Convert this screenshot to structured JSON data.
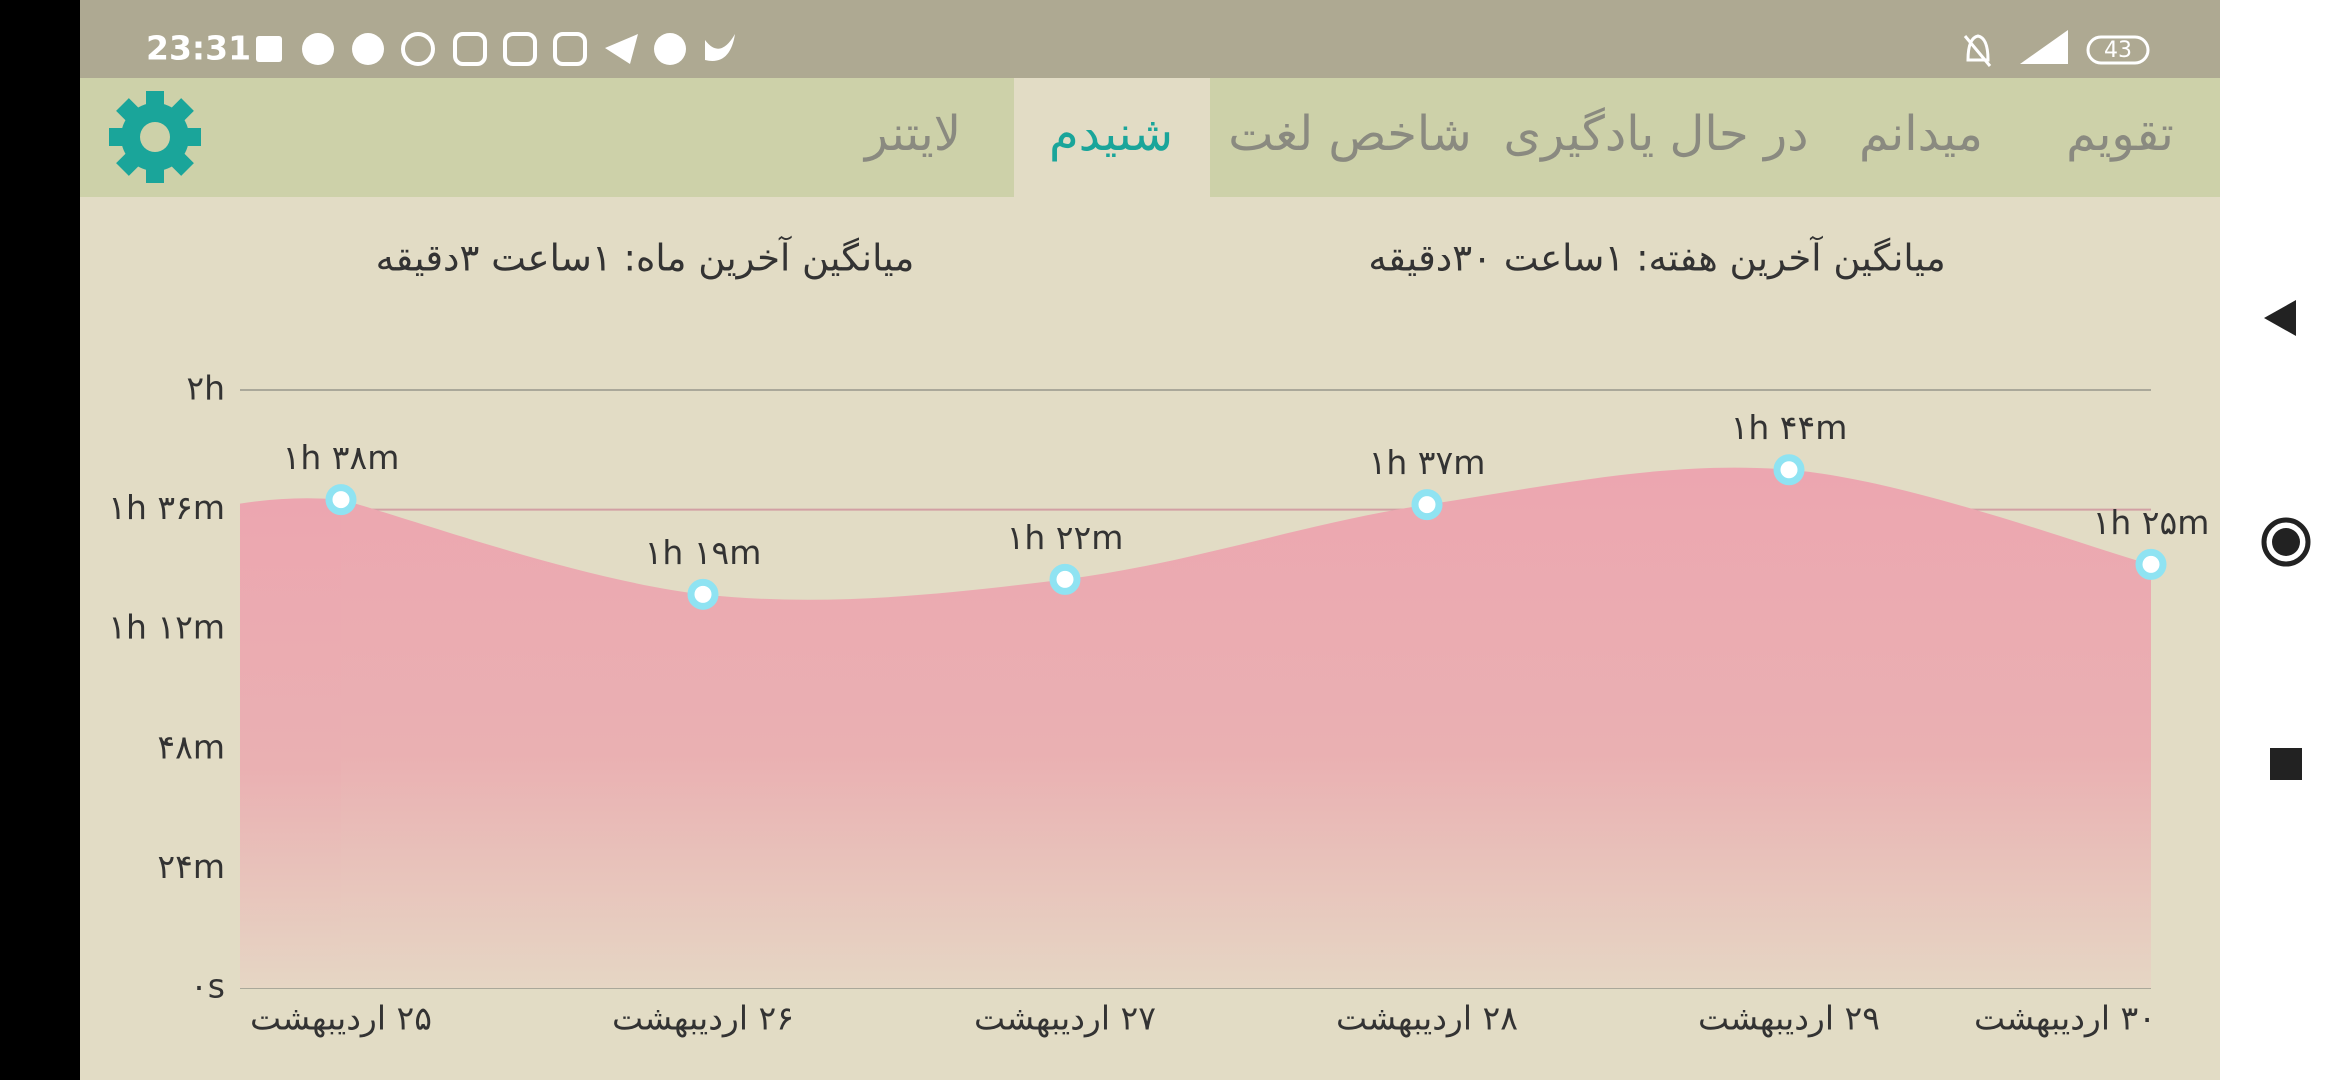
{
  "status_bar": {
    "time": "23:31",
    "battery": "43"
  },
  "tabs": [
    "تقویم",
    "میدانم",
    "در حال یادگیری",
    "شاخص لغت",
    "شنیدم",
    "لایتنر"
  ],
  "summary": {
    "week": "میانگین آخرین هفته: ۱ساعت ۳۰دقیقه",
    "month": "میانگین آخرین ماه: ۱ساعت ۳دقیقه"
  },
  "chart_data": {
    "type": "area",
    "categories": [
      "۲۵ اردیبهشت",
      "۲۶ اردیبهشت",
      "۲۷ اردیبهشت",
      "۲۸ اردیبهشت",
      "۲۹ اردیبهشت",
      "۳۰ اردیبهشت"
    ],
    "series": [
      {
        "color": "#eca6b0",
        "values": [
          98,
          79,
          82,
          97,
          104,
          85
        ],
        "value_labels": [
          "۱h ۳۸m",
          "۱h ۱۹m",
          "۱h ۲۲m",
          "۱h ۳۷m",
          "۱h ۴۴m",
          "۱h ۲۵m"
        ]
      }
    ],
    "ylim": [
      0,
      120
    ],
    "yticks": [
      {
        "value": 0,
        "label": "۰s"
      },
      {
        "value": 24,
        "label": "۲۴m"
      },
      {
        "value": 48,
        "label": "۴۸m"
      },
      {
        "value": 72,
        "label": "۱h ۱۲m"
      },
      {
        "value": 96,
        "label": "۱h ۳۶m"
      },
      {
        "value": 120,
        "label": "۲h"
      }
    ],
    "grid": true
  }
}
